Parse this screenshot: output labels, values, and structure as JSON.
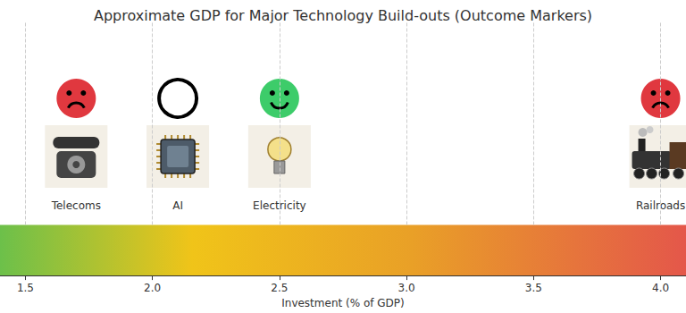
{
  "chart_data": {
    "type": "scatter",
    "title": "Approximate GDP for Major Technology Build-outs (Outcome Markers)",
    "x_label": "Investment (% of GDP)",
    "xlim": [
      1.4,
      4.1
    ],
    "xticks": [
      1.5,
      {
        "value": 2,
        "label": "2.0"
      },
      2.5,
      {
        "value": 3,
        "label": "3.0"
      },
      3.5,
      {
        "value": 4,
        "label": "4.0"
      }
    ],
    "grid": true,
    "series": [
      {
        "name": "Telecoms",
        "color": "#e0383f",
        "marker": "sad",
        "values": [
          1.7
        ]
      },
      {
        "name": "AI",
        "color": "#ffffff",
        "marker": "neutral",
        "values": [
          2.1
        ]
      },
      {
        "name": "Electricity",
        "color": "#3dcc6a",
        "marker": "happy",
        "values": [
          2.5
        ]
      },
      {
        "name": "Railroads",
        "color": "#e0383f",
        "marker": "sad",
        "values": [
          4.0
        ]
      }
    ]
  }
}
